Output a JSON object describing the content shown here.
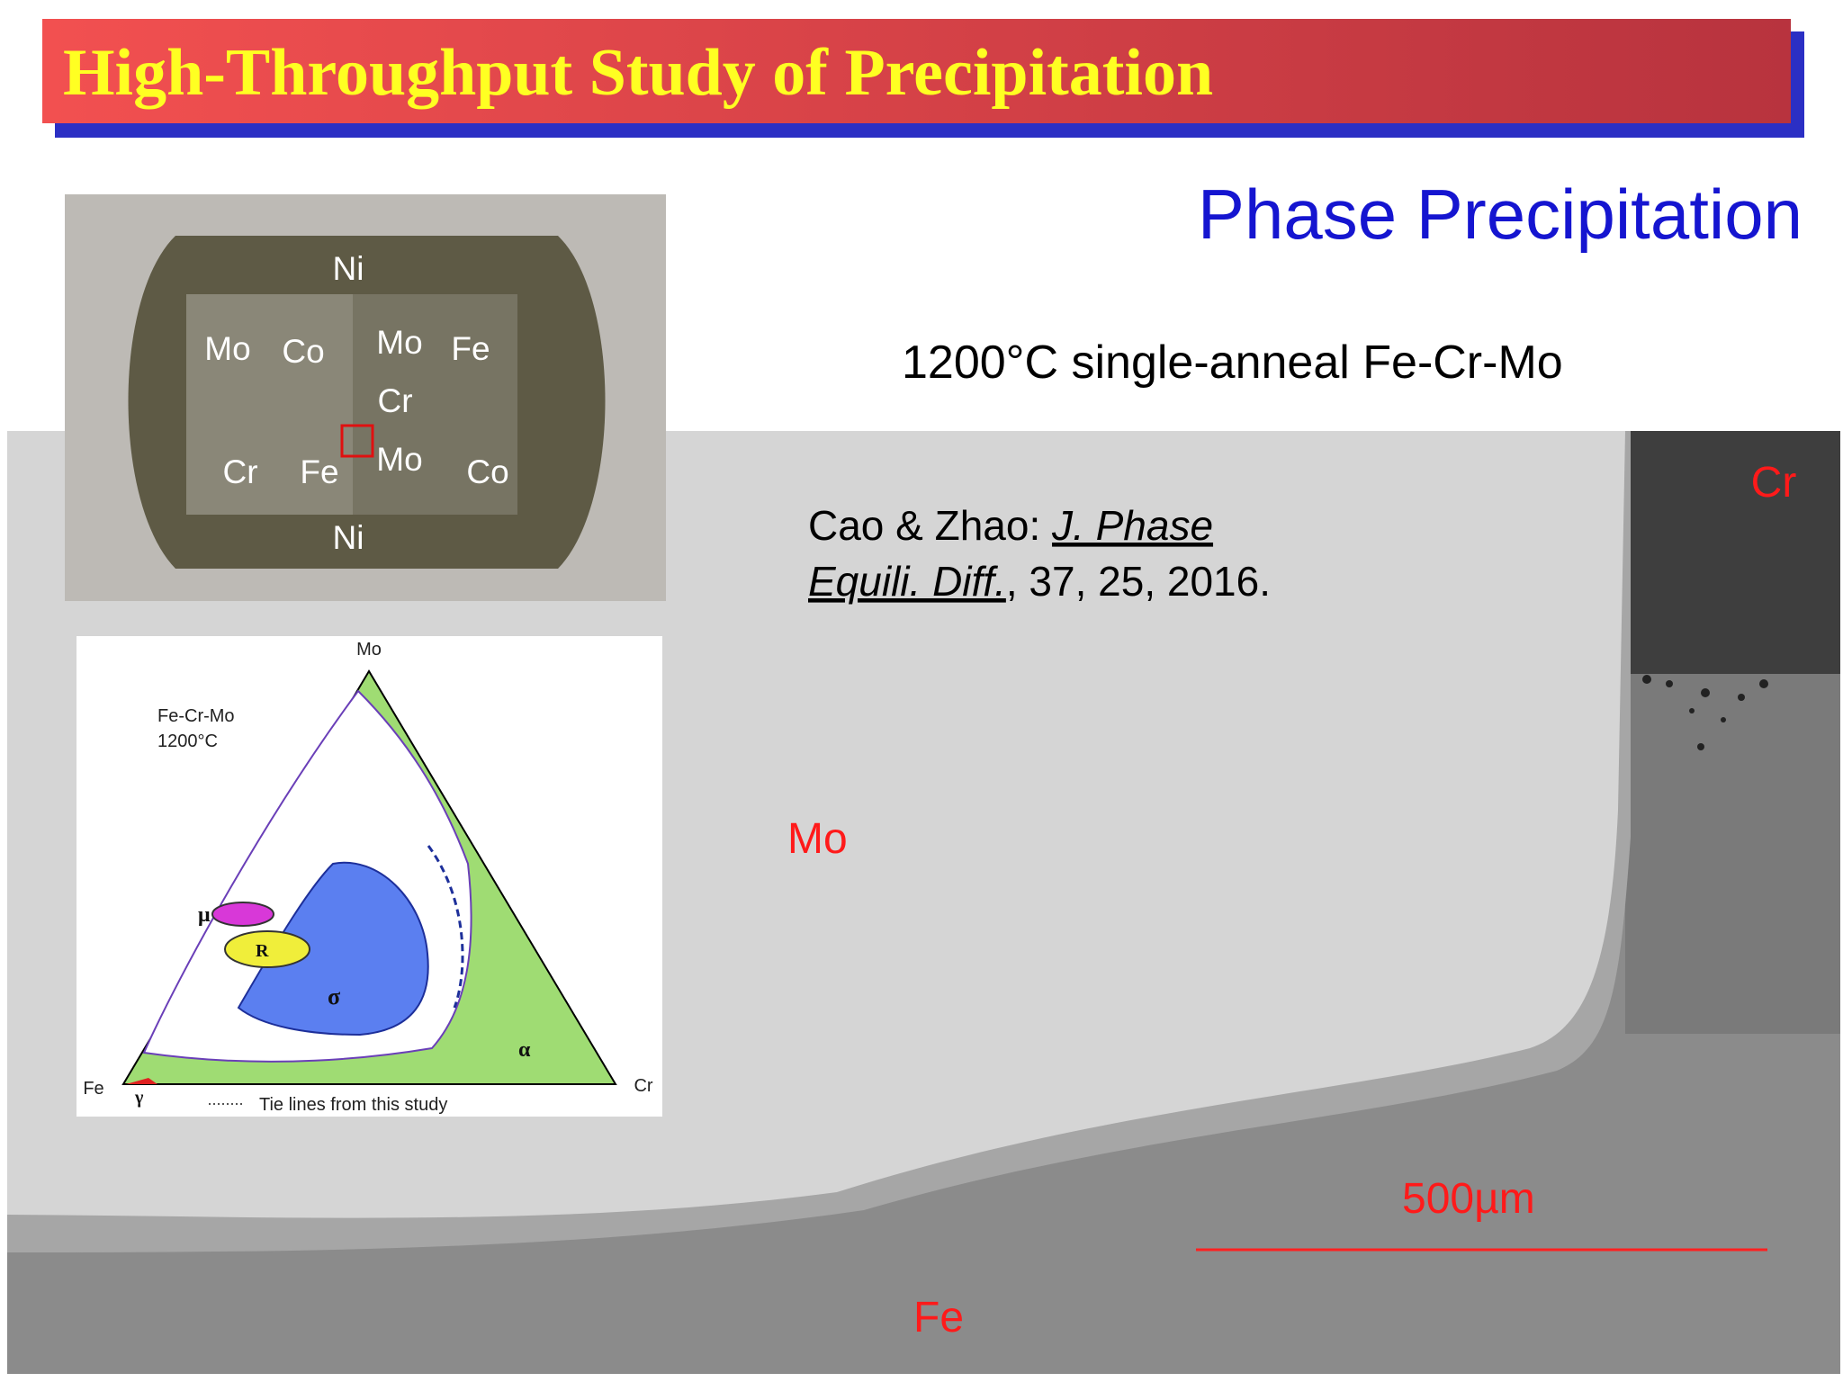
{
  "header": {
    "title": "High-Throughput Study of Precipitation"
  },
  "subtitle": "Phase Precipitation",
  "caption": "1200°C single-anneal Fe-Cr-Mo",
  "citation": {
    "authors": "Cao & Zhao:",
    "journal": [
      "J. Phase",
      "Equili. Diff."
    ],
    "details": ", 37, 25, 2016."
  },
  "micrograph": {
    "labels": [
      "Cr",
      "Mo",
      "Fe"
    ],
    "scale_bar": "500µm"
  },
  "sample_photo": {
    "labels": [
      "Ni",
      "Mo",
      "Co",
      "Mo",
      "Fe",
      "Cr",
      "Cr",
      "Fe",
      "Mo",
      "Co",
      "Ni"
    ]
  },
  "phase_diagram": {
    "title": [
      "Fe-Cr-Mo",
      "1200°C"
    ],
    "corners": [
      "Mo",
      "Fe",
      "Cr"
    ],
    "phases": [
      "μ",
      "R",
      "σ",
      "α",
      "γ"
    ],
    "legend": "Tie lines from this study"
  }
}
